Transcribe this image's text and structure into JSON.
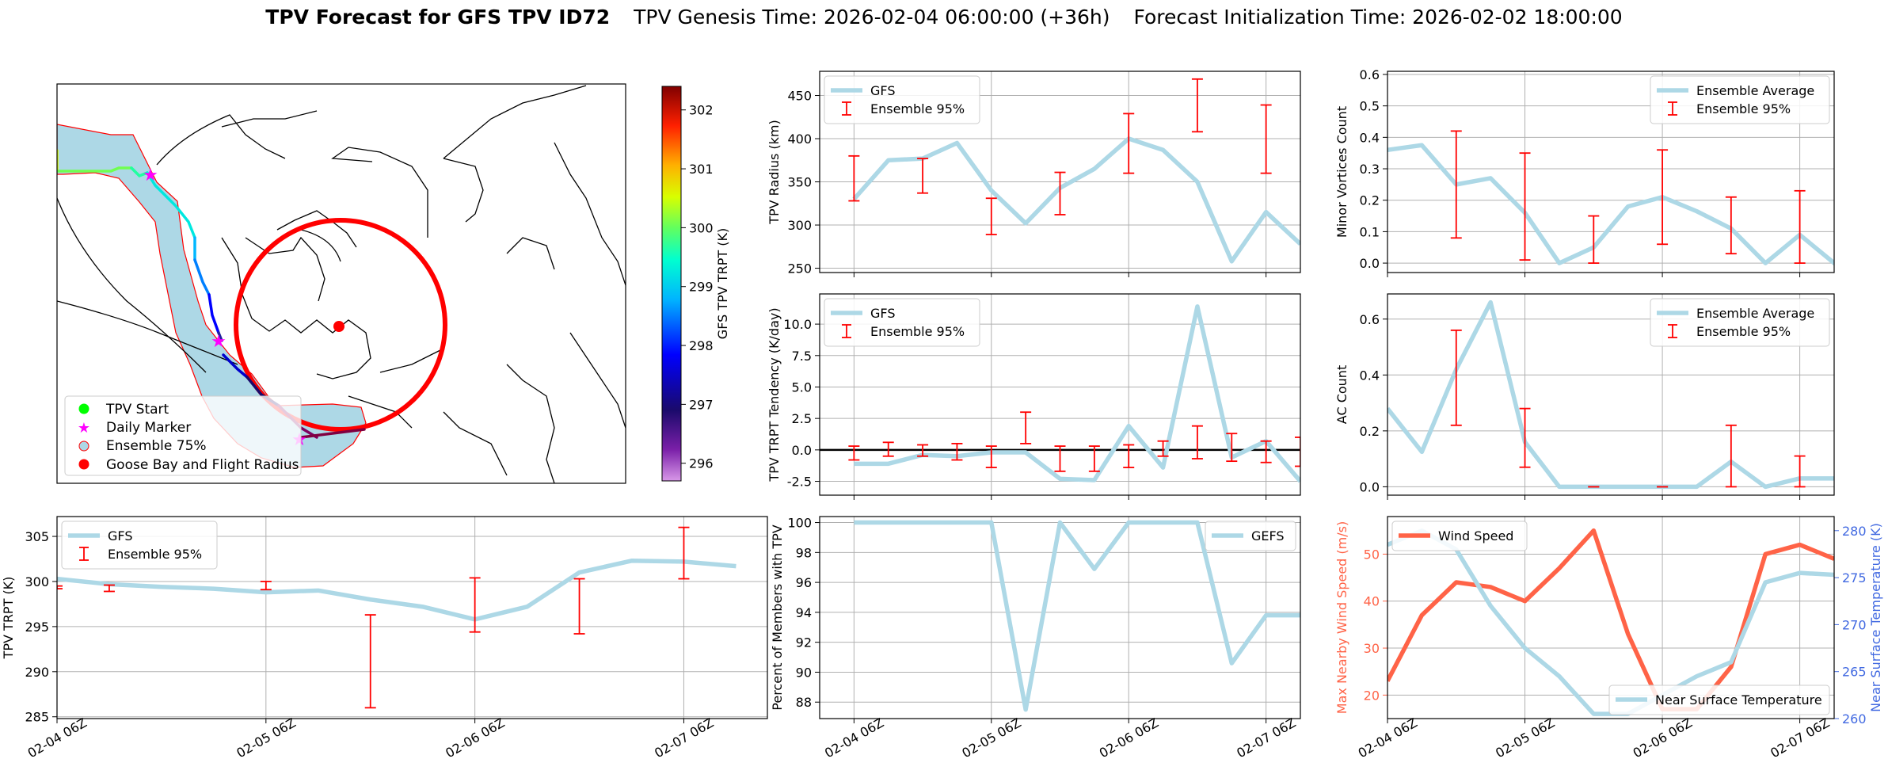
{
  "title": {
    "bold": "TPV Forecast for GFS TPV ID72",
    "genesis": "TPV Genesis Time: 2026-02-04 06:00:00 (+36h)",
    "init": "Forecast Initialization Time: 2026-02-02 18:00:00"
  },
  "colors": {
    "gfs_line": "#add8e6",
    "error_bar": "#ff0000",
    "wind": "#ff6347",
    "temp_axis": "#4169e1",
    "zero_line": "#000000",
    "ensemble75_fill": "#add8e6",
    "start_marker": "#00ff00",
    "daily_marker": "#ff00ff",
    "goose_bay": "#ff0000"
  },
  "map": {
    "colorbar": {
      "label": "GFS TPV TRPT (K)",
      "ticks": [
        "296",
        "297",
        "298",
        "299",
        "300",
        "301",
        "302"
      ],
      "range": [
        295.7,
        302.4
      ]
    },
    "legend": [
      "TPV Start",
      "Daily Marker",
      "Ensemble 75%",
      "Goose Bay and Flight Radius"
    ]
  },
  "time_ticks": [
    "02-04 06Z",
    "02-05 06Z",
    "02-06 06Z",
    "02-07 06Z"
  ],
  "chart_data": [
    {
      "id": "radius",
      "type": "line",
      "ylabel": "TPV Radius (km)",
      "ylim": [
        245,
        478
      ],
      "yticks": [
        250,
        300,
        350,
        400,
        450
      ],
      "legend": [
        "GFS",
        "Ensemble 95%"
      ],
      "legend_pos": "top-left",
      "grid": true,
      "x": [
        -0.25,
        0,
        0.25,
        0.5,
        0.75,
        1,
        1.25,
        1.5,
        1.75,
        2,
        2.25,
        2.5,
        2.75,
        3,
        3.25,
        3.5,
        3.75,
        4
      ],
      "series": [
        {
          "name": "GFS",
          "x": [
            0,
            0.25,
            0.5,
            0.75,
            1,
            1.25,
            1.5,
            1.75,
            2,
            2.25,
            2.5,
            2.75,
            3,
            3.25
          ],
          "values": [
            330,
            375,
            377,
            395,
            340,
            302,
            343,
            365,
            400,
            387,
            350,
            258,
            315,
            278
          ]
        }
      ],
      "errorbars": [
        {
          "x": 0,
          "low": 328,
          "high": 380
        },
        {
          "x": 0.5,
          "low": 337,
          "high": 377
        },
        {
          "x": 1,
          "low": 289,
          "high": 331
        },
        {
          "x": 1.5,
          "low": 312,
          "high": 361
        },
        {
          "x": 2,
          "low": 360,
          "high": 429
        },
        {
          "x": 2.5,
          "low": 408,
          "high": 469
        },
        {
          "x": 3,
          "low": 360,
          "high": 439
        }
      ]
    },
    {
      "id": "tendency",
      "type": "line",
      "ylabel": "TPV TRPT Tendency (K/day)",
      "ylim": [
        -3.6,
        12.4
      ],
      "yticks": [
        -2.5,
        0.0,
        2.5,
        5.0,
        7.5,
        10.0
      ],
      "legend": [
        "GFS",
        "Ensemble 95%"
      ],
      "legend_pos": "top-left",
      "grid": true,
      "zero_line": true,
      "series": [
        {
          "name": "GFS",
          "x": [
            0,
            0.25,
            0.5,
            0.75,
            1,
            1.25,
            1.5,
            1.75,
            2,
            2.25,
            2.5,
            2.75,
            3,
            3.25
          ],
          "values": [
            -1.1,
            -1.1,
            -0.4,
            -0.5,
            -0.2,
            -0.2,
            -2.3,
            -2.4,
            1.9,
            -1.4,
            11.4,
            -0.6,
            0.7,
            -2.5
          ]
        }
      ],
      "errorbars": [
        {
          "x": 0,
          "low": -0.8,
          "high": 0.3
        },
        {
          "x": 0.25,
          "low": -0.5,
          "high": 0.6
        },
        {
          "x": 0.5,
          "low": -0.5,
          "high": 0.4
        },
        {
          "x": 0.75,
          "low": -0.8,
          "high": 0.5
        },
        {
          "x": 1,
          "low": -1.4,
          "high": 0.3
        },
        {
          "x": 1.25,
          "low": 0.5,
          "high": 3.0
        },
        {
          "x": 1.5,
          "low": -1.7,
          "high": 0.3
        },
        {
          "x": 1.75,
          "low": -1.7,
          "high": 0.3
        },
        {
          "x": 2,
          "low": -1.4,
          "high": 0.4
        },
        {
          "x": 2.25,
          "low": -0.5,
          "high": 0.7
        },
        {
          "x": 2.5,
          "low": -0.7,
          "high": 1.9
        },
        {
          "x": 2.75,
          "low": -0.9,
          "high": 1.3
        },
        {
          "x": 3,
          "low": -1.0,
          "high": 0.7
        },
        {
          "x": 3.25,
          "low": -1.3,
          "high": 1.0
        }
      ]
    },
    {
      "id": "trpt",
      "type": "line",
      "ylabel": "TPV TRPT (K)",
      "ylim": [
        284.8,
        307.2
      ],
      "yticks": [
        285,
        290,
        295,
        300,
        305
      ],
      "legend": [
        "GFS",
        "Ensemble 95%"
      ],
      "legend_pos": "top-left",
      "grid": true,
      "series": [
        {
          "name": "GFS",
          "x": [
            0,
            0.25,
            0.5,
            0.75,
            1,
            1.25,
            1.5,
            1.75,
            2,
            2.25,
            2.5,
            2.75,
            3,
            3.25
          ],
          "values": [
            300.3,
            299.7,
            299.4,
            299.2,
            298.8,
            299.0,
            298.0,
            297.2,
            295.8,
            297.2,
            301.0,
            302.3,
            302.2,
            301.7
          ]
        }
      ],
      "errorbars": [
        {
          "x": 0,
          "low": 299.2,
          "high": 299.5
        },
        {
          "x": 0.25,
          "low": 298.9,
          "high": 299.6
        },
        {
          "x": 1,
          "low": 299.1,
          "high": 300.0
        },
        {
          "x": 1.5,
          "low": 286.0,
          "high": 296.3
        },
        {
          "x": 2,
          "low": 294.4,
          "high": 300.4
        },
        {
          "x": 2.5,
          "low": 294.2,
          "high": 300.3
        },
        {
          "x": 3,
          "low": 300.3,
          "high": 306.0
        }
      ]
    },
    {
      "id": "members",
      "type": "line",
      "ylabel": "Percent of Members with TPV",
      "ylim": [
        86.9,
        100.4
      ],
      "yticks": [
        88,
        90,
        92,
        94,
        96,
        98,
        100
      ],
      "legend": [
        "GEFS"
      ],
      "legend_pos": "top-right",
      "grid": true,
      "series": [
        {
          "name": "GEFS",
          "x": [
            0,
            0.25,
            0.5,
            0.75,
            1,
            1.25,
            1.5,
            1.75,
            2,
            2.25,
            2.5,
            2.75,
            3,
            3.25
          ],
          "values": [
            100,
            100,
            100,
            100,
            100,
            87.5,
            100,
            96.9,
            100,
            100,
            100,
            90.6,
            93.8,
            93.8
          ]
        }
      ]
    },
    {
      "id": "minor",
      "type": "line",
      "ylabel": "Minor Vortices Count",
      "ylim": [
        -0.03,
        0.61
      ],
      "yticks": [
        0.0,
        0.1,
        0.2,
        0.3,
        0.4,
        0.5,
        0.6
      ],
      "legend": [
        "Ensemble Average",
        "Ensemble 95%"
      ],
      "legend_pos": "top-right",
      "grid": true,
      "series": [
        {
          "name": "Ensemble Average",
          "x": [
            0,
            0.125,
            0.25,
            0.375,
            0.5,
            0.625,
            0.75,
            0.875,
            1.0,
            1.125,
            1.25,
            1.375,
            1.5,
            1.625,
            1.75,
            1.875,
            2.0,
            2.125
          ],
          "values": [
            0.36,
            0.375,
            0.25,
            0.27,
            0.16,
            0.0,
            0.05,
            0.18,
            0.21,
            0.165,
            0.11,
            0.0,
            0.09,
            0.0,
            0.0,
            0.0,
            0.0,
            0.0
          ]
        }
      ],
      "errorbars": [
        {
          "x": 0.25,
          "low": 0.08,
          "high": 0.42
        },
        {
          "x": 0.5,
          "low": 0.01,
          "high": 0.35
        },
        {
          "x": 0.75,
          "low": 0.0,
          "high": 0.15
        },
        {
          "x": 1.0,
          "low": 0.06,
          "high": 0.36
        },
        {
          "x": 1.25,
          "low": 0.03,
          "high": 0.21
        },
        {
          "x": 1.5,
          "low": 0.0,
          "high": 0.23
        }
      ]
    },
    {
      "id": "ac",
      "type": "line",
      "ylabel": "AC Count",
      "ylim": [
        -0.03,
        0.69
      ],
      "yticks": [
        0.0,
        0.2,
        0.4,
        0.6
      ],
      "legend": [
        "Ensemble Average",
        "Ensemble 95%"
      ],
      "legend_pos": "top-right",
      "grid": true,
      "series": [
        {
          "name": "Ensemble Average",
          "x": [
            0,
            0.125,
            0.25,
            0.375,
            0.5,
            0.625,
            0.75,
            0.875,
            1.0,
            1.125,
            1.25,
            1.375,
            1.5,
            1.625
          ],
          "values": [
            0.28,
            0.125,
            0.42,
            0.66,
            0.16,
            0.0,
            0.0,
            0.0,
            0.0,
            0.0,
            0.09,
            0.0,
            0.03,
            0.03
          ]
        }
      ],
      "errorbars": [
        {
          "x": 0.25,
          "low": 0.22,
          "high": 0.56
        },
        {
          "x": 0.5,
          "low": 0.07,
          "high": 0.28
        },
        {
          "x": 0.75,
          "low": 0.0,
          "high": 0.0
        },
        {
          "x": 1.0,
          "low": 0.0,
          "high": 0.0
        },
        {
          "x": 1.25,
          "low": 0.0,
          "high": 0.22
        },
        {
          "x": 1.5,
          "low": 0.0,
          "high": 0.11
        }
      ]
    },
    {
      "id": "wind",
      "type": "line",
      "ylabel": "Max Nearby Wind Speed (m/s)",
      "ylabel_right": "Near Surface Temperature (K)",
      "ylim": [
        15,
        58
      ],
      "ylim_right": [
        260,
        281.5
      ],
      "yticks": [
        20,
        30,
        40,
        50
      ],
      "yticks_right": [
        260,
        265,
        270,
        275,
        280
      ],
      "legend": [
        "Wind Speed",
        "Near Surface Temperature"
      ],
      "legend_pos": "top-left / bottom-right",
      "grid": true,
      "series": [
        {
          "name": "Wind Speed",
          "axis": "left",
          "x": [
            0,
            0.125,
            0.25,
            0.375,
            0.5,
            0.625,
            0.75,
            0.875,
            1.0,
            1.125,
            1.25,
            1.375,
            1.5,
            1.625
          ],
          "values": [
            23,
            37,
            44,
            43,
            40,
            47,
            55,
            33,
            17,
            17,
            26,
            50,
            52,
            49
          ]
        },
        {
          "name": "Near Surface Temperature",
          "axis": "right",
          "x": [
            0,
            0.125,
            0.25,
            0.375,
            0.5,
            0.625,
            0.75,
            0.875,
            1.0,
            1.125,
            1.25,
            1.375,
            1.5,
            1.625
          ],
          "values": [
            278.5,
            280.0,
            278.0,
            272.0,
            267.5,
            264.5,
            260.5,
            260.5,
            262.5,
            264.5,
            266.0,
            274.5,
            275.5,
            275.3
          ]
        }
      ]
    }
  ]
}
